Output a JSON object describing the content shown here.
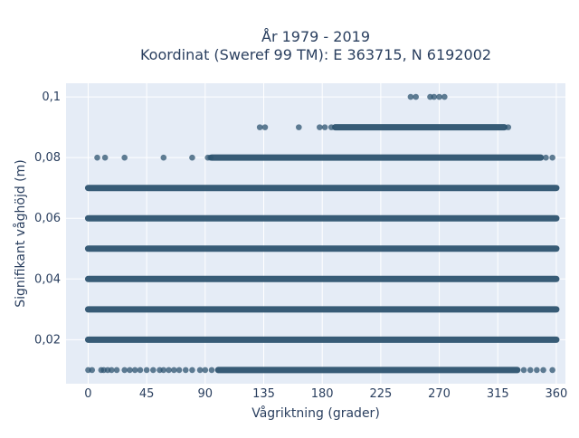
{
  "chart_data": {
    "type": "scatter",
    "title_line1": "År 1979 - 2019",
    "title_line2": "Koordinat (Sweref 99 TM): E 363715, N 6192002",
    "xlabel": "Vågriktning (grader)",
    "ylabel": "Signifikant våghöjd (m)",
    "xlim": [
      -17,
      367
    ],
    "ylim": [
      0.0055,
      0.1045
    ],
    "x_ticks": [
      0,
      45,
      90,
      135,
      180,
      225,
      270,
      315,
      360
    ],
    "x_tick_labels": [
      "0",
      "45",
      "90",
      "135",
      "180",
      "225",
      "270",
      "315",
      "360"
    ],
    "y_ticks": [
      0.02,
      0.04,
      0.06,
      0.08,
      0.1
    ],
    "y_tick_labels": [
      "0,02",
      "0,04",
      "0,06",
      "0,08",
      "0,1"
    ],
    "grid": true,
    "marker_color": "#2e5470",
    "plot_bg": "#e5ecf6",
    "bands": [
      {
        "y": 0.01,
        "dense_ranges": [
          [
            100,
            330
          ]
        ],
        "points": [
          0,
          3,
          10,
          12,
          15,
          18,
          22,
          28,
          32,
          36,
          40,
          45,
          50,
          55,
          58,
          62,
          66,
          70,
          75,
          80,
          86,
          90,
          95,
          335,
          340,
          345,
          350,
          357
        ]
      },
      {
        "y": 0.02,
        "dense_ranges": [
          [
            0,
            360
          ]
        ],
        "points": []
      },
      {
        "y": 0.03,
        "dense_ranges": [
          [
            0,
            360
          ]
        ],
        "points": []
      },
      {
        "y": 0.04,
        "dense_ranges": [
          [
            0,
            360
          ]
        ],
        "points": []
      },
      {
        "y": 0.05,
        "dense_ranges": [
          [
            0,
            360
          ]
        ],
        "points": []
      },
      {
        "y": 0.06,
        "dense_ranges": [
          [
            0,
            360
          ]
        ],
        "points": []
      },
      {
        "y": 0.07,
        "dense_ranges": [
          [
            0,
            360
          ]
        ],
        "points": []
      },
      {
        "y": 0.08,
        "dense_ranges": [
          [
            95,
            348
          ]
        ],
        "points": [
          7,
          13,
          28,
          58,
          80,
          92,
          94,
          352,
          357
        ]
      },
      {
        "y": 0.09,
        "dense_ranges": [
          [
            190,
            320
          ]
        ],
        "points": [
          132,
          136,
          162,
          178,
          182,
          187,
          323
        ]
      },
      {
        "y": 0.1,
        "dense_ranges": [],
        "points": [
          248,
          252,
          263,
          266,
          270,
          274
        ]
      }
    ]
  }
}
